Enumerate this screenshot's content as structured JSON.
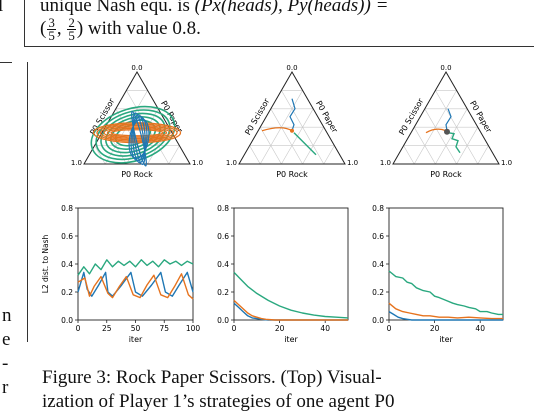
{
  "header_text": {
    "line1_prefix": "unique Nash equ. is ",
    "line1_math": "(Px(heads), Py(heads)) =",
    "line2_frac1_num": "3",
    "line2_frac1_den": "5",
    "line2_frac2_num": "2",
    "line2_frac2_den": "5",
    "line2_suffix": "with value 0.8.",
    "left_frag_top": "l"
  },
  "left_margin_fragments": [
    "n",
    "e",
    "-",
    "r"
  ],
  "caption": {
    "line1": "Figure 3: Rock Paper Scissors. (Top) Visual-",
    "line2": "ization of Player 1’s strategies of one agent P0"
  },
  "ternary": {
    "axis_left": "P0 Scissor",
    "axis_right": "P0 Paper",
    "axis_bottom": "P0 Rock",
    "tick_top": "0.0",
    "tick_bottom_left": "1.0",
    "tick_bottom_right": "1.0"
  },
  "colors": {
    "blue": "#1f77b4",
    "orange": "#e6731e",
    "green": "#2aa87f"
  },
  "chart_data": [
    {
      "type": "line",
      "ylabel": "L2 dist. to Nash",
      "xlabel": "iter",
      "xlim": [
        0,
        100
      ],
      "ylim": [
        0,
        0.8
      ],
      "xticks": [
        "0",
        "25",
        "50",
        "75",
        "100"
      ],
      "yticks": [
        "0.0",
        "0.2",
        "0.4",
        "0.6",
        "0.8"
      ],
      "series": [
        {
          "color": "green",
          "x": [
            0,
            5,
            10,
            15,
            20,
            25,
            30,
            35,
            40,
            45,
            50,
            55,
            60,
            65,
            70,
            75,
            80,
            85,
            90,
            95,
            100
          ],
          "y": [
            0.32,
            0.38,
            0.33,
            0.4,
            0.36,
            0.43,
            0.38,
            0.42,
            0.39,
            0.42,
            0.38,
            0.43,
            0.39,
            0.42,
            0.38,
            0.43,
            0.4,
            0.42,
            0.39,
            0.42,
            0.4
          ]
        },
        {
          "color": "blue",
          "x": [
            0,
            5,
            8,
            12,
            18,
            24,
            26,
            30,
            38,
            46,
            50,
            56,
            64,
            72,
            76,
            82,
            88,
            95,
            100
          ],
          "y": [
            0.2,
            0.34,
            0.22,
            0.17,
            0.25,
            0.34,
            0.2,
            0.17,
            0.25,
            0.34,
            0.2,
            0.17,
            0.25,
            0.34,
            0.2,
            0.17,
            0.25,
            0.34,
            0.2
          ]
        },
        {
          "color": "orange",
          "x": [
            0,
            6,
            10,
            14,
            20,
            26,
            30,
            36,
            42,
            48,
            54,
            60,
            66,
            72,
            78,
            84,
            90,
            96,
            100
          ],
          "y": [
            0.27,
            0.3,
            0.17,
            0.24,
            0.31,
            0.19,
            0.16,
            0.24,
            0.31,
            0.18,
            0.16,
            0.25,
            0.32,
            0.18,
            0.16,
            0.24,
            0.33,
            0.18,
            0.15
          ]
        }
      ]
    },
    {
      "type": "line",
      "xlabel": "iter",
      "xlim": [
        0,
        50
      ],
      "ylim": [
        0,
        0.8
      ],
      "xticks": [
        "0",
        "20",
        "40"
      ],
      "yticks": [
        "0.0",
        "0.2",
        "0.4",
        "0.6",
        "0.8"
      ],
      "series": [
        {
          "color": "green",
          "x": [
            0,
            3,
            6,
            10,
            15,
            20,
            25,
            30,
            35,
            40,
            45,
            50
          ],
          "y": [
            0.34,
            0.29,
            0.24,
            0.19,
            0.14,
            0.1,
            0.07,
            0.05,
            0.035,
            0.025,
            0.02,
            0.015
          ]
        },
        {
          "color": "blue",
          "x": [
            0,
            2,
            4,
            6,
            8,
            10,
            12,
            15,
            20,
            50
          ],
          "y": [
            0.12,
            0.09,
            0.06,
            0.03,
            0.015,
            0.01,
            0.005,
            0.0,
            0.0,
            0.0
          ]
        },
        {
          "color": "orange",
          "x": [
            0,
            2,
            4,
            6,
            8,
            10,
            12,
            14,
            18,
            25,
            50
          ],
          "y": [
            0.14,
            0.11,
            0.08,
            0.05,
            0.03,
            0.02,
            0.01,
            0.005,
            0.0,
            0.0,
            0.0
          ]
        }
      ]
    },
    {
      "type": "line",
      "xlabel": "iter",
      "xlim": [
        0,
        50
      ],
      "ylim": [
        0,
        0.8
      ],
      "xticks": [
        "0",
        "20",
        "40"
      ],
      "yticks": [
        "0.0",
        "0.2",
        "0.4",
        "0.6",
        "0.8"
      ],
      "series": [
        {
          "color": "green",
          "x": [
            0,
            3,
            6,
            8,
            10,
            12,
            15,
            18,
            20,
            22,
            25,
            28,
            30,
            33,
            35,
            38,
            40,
            43,
            45,
            48,
            50
          ],
          "y": [
            0.35,
            0.31,
            0.3,
            0.27,
            0.26,
            0.23,
            0.21,
            0.2,
            0.17,
            0.16,
            0.14,
            0.12,
            0.11,
            0.1,
            0.09,
            0.08,
            0.06,
            0.06,
            0.05,
            0.04,
            0.04
          ]
        },
        {
          "color": "orange",
          "x": [
            0,
            3,
            6,
            9,
            12,
            15,
            18,
            22,
            26,
            30,
            35,
            40,
            45,
            50
          ],
          "y": [
            0.12,
            0.08,
            0.06,
            0.05,
            0.04,
            0.03,
            0.03,
            0.02,
            0.02,
            0.015,
            0.02,
            0.015,
            0.01,
            0.01
          ]
        },
        {
          "color": "blue",
          "x": [
            0,
            2,
            4,
            6,
            8,
            10,
            14,
            20,
            50
          ],
          "y": [
            0.06,
            0.04,
            0.02,
            0.01,
            0.005,
            0.0,
            0.0,
            0.0,
            0.0
          ]
        }
      ]
    }
  ]
}
